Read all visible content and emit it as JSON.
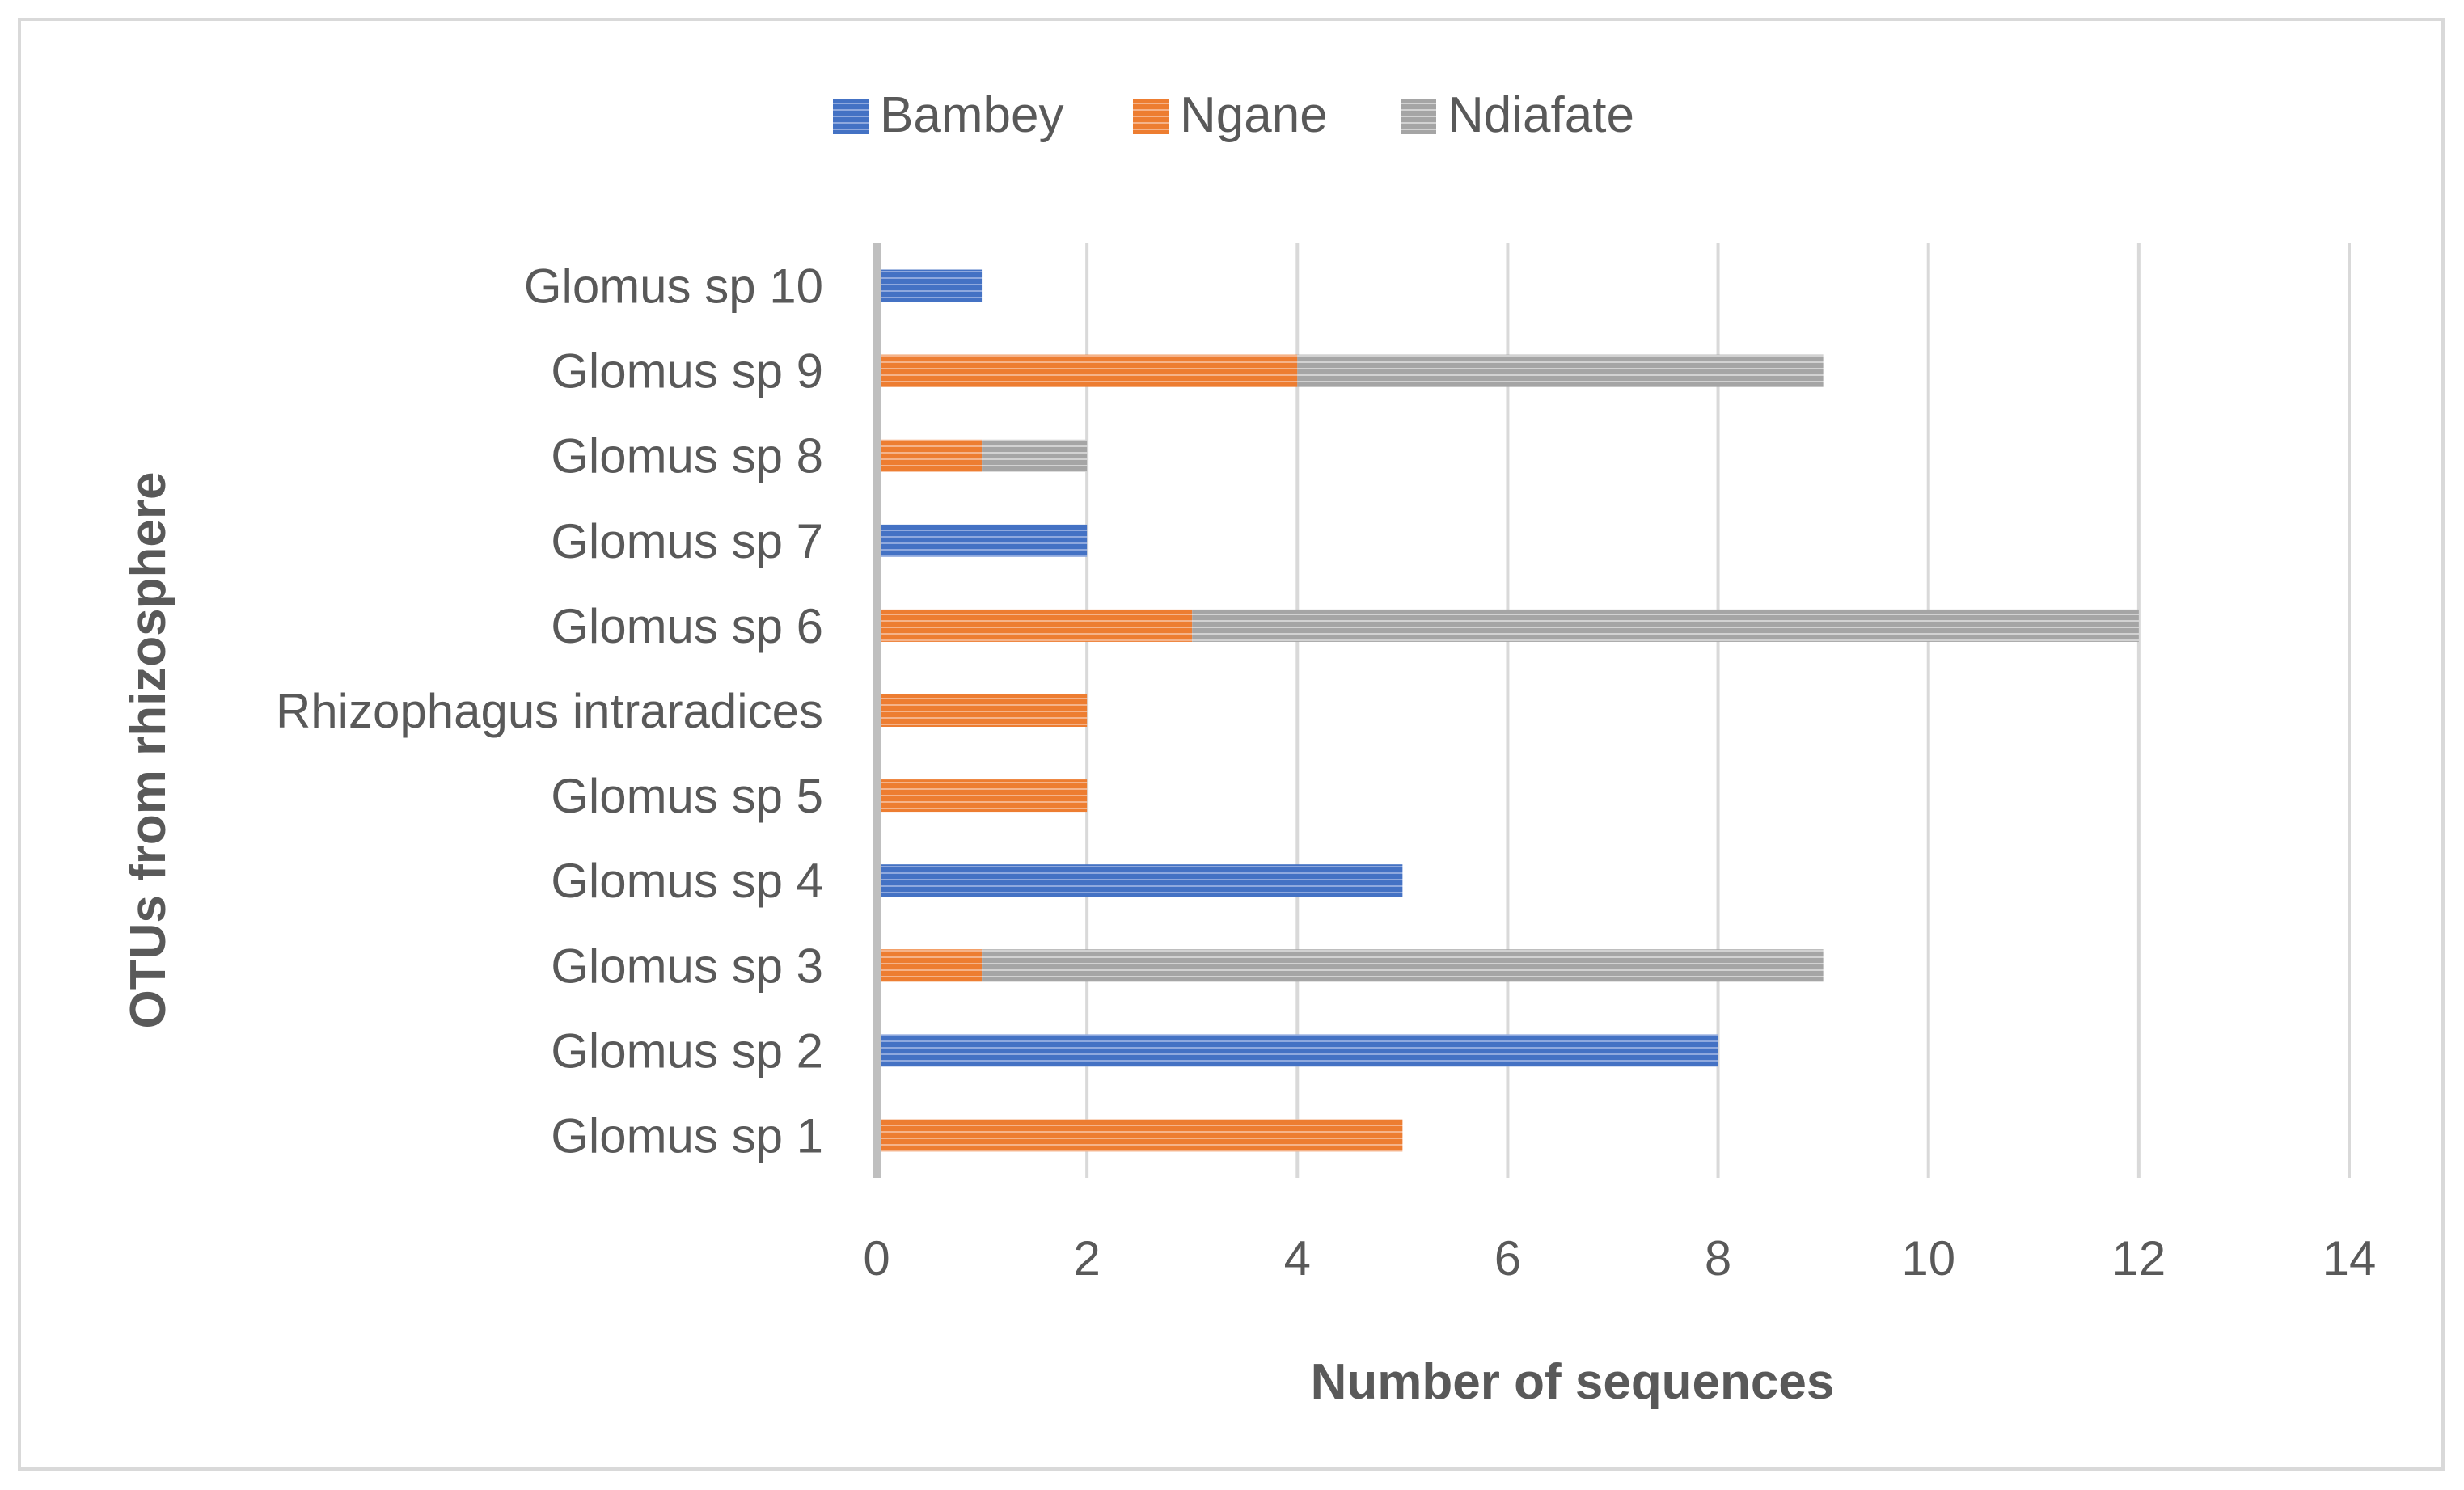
{
  "chart_data": {
    "type": "bar",
    "orientation": "horizontal",
    "stacked": true,
    "title": "",
    "xlabel": "Number of sequences",
    "ylabel": "OTUs from rhizosphere",
    "xlim": [
      0,
      14
    ],
    "xticks": [
      0,
      2,
      4,
      6,
      8,
      10,
      12,
      14
    ],
    "grid": true,
    "legend_position": "top",
    "categories": [
      "Glomus sp 1",
      "Glomus sp 2",
      "Glomus sp 3",
      "Glomus sp 4",
      "Glomus sp 5",
      "Rhizophagus intraradices",
      "Glomus sp 6",
      "Glomus sp 7",
      "Glomus sp 8",
      "Glomus sp 9",
      "Glomus sp 10"
    ],
    "series": [
      {
        "name": "Bambey",
        "color": "#4472c4",
        "values": [
          0,
          8,
          0,
          5,
          0,
          0,
          0,
          2,
          0,
          0,
          1
        ]
      },
      {
        "name": "Ngane",
        "color": "#ed7d31",
        "values": [
          5,
          0,
          1,
          0,
          2,
          2,
          3,
          0,
          1,
          4,
          0
        ]
      },
      {
        "name": "Ndiafate",
        "color": "#a5a5a5",
        "values": [
          0,
          0,
          8,
          0,
          0,
          0,
          9,
          0,
          1,
          5,
          0
        ]
      }
    ]
  }
}
